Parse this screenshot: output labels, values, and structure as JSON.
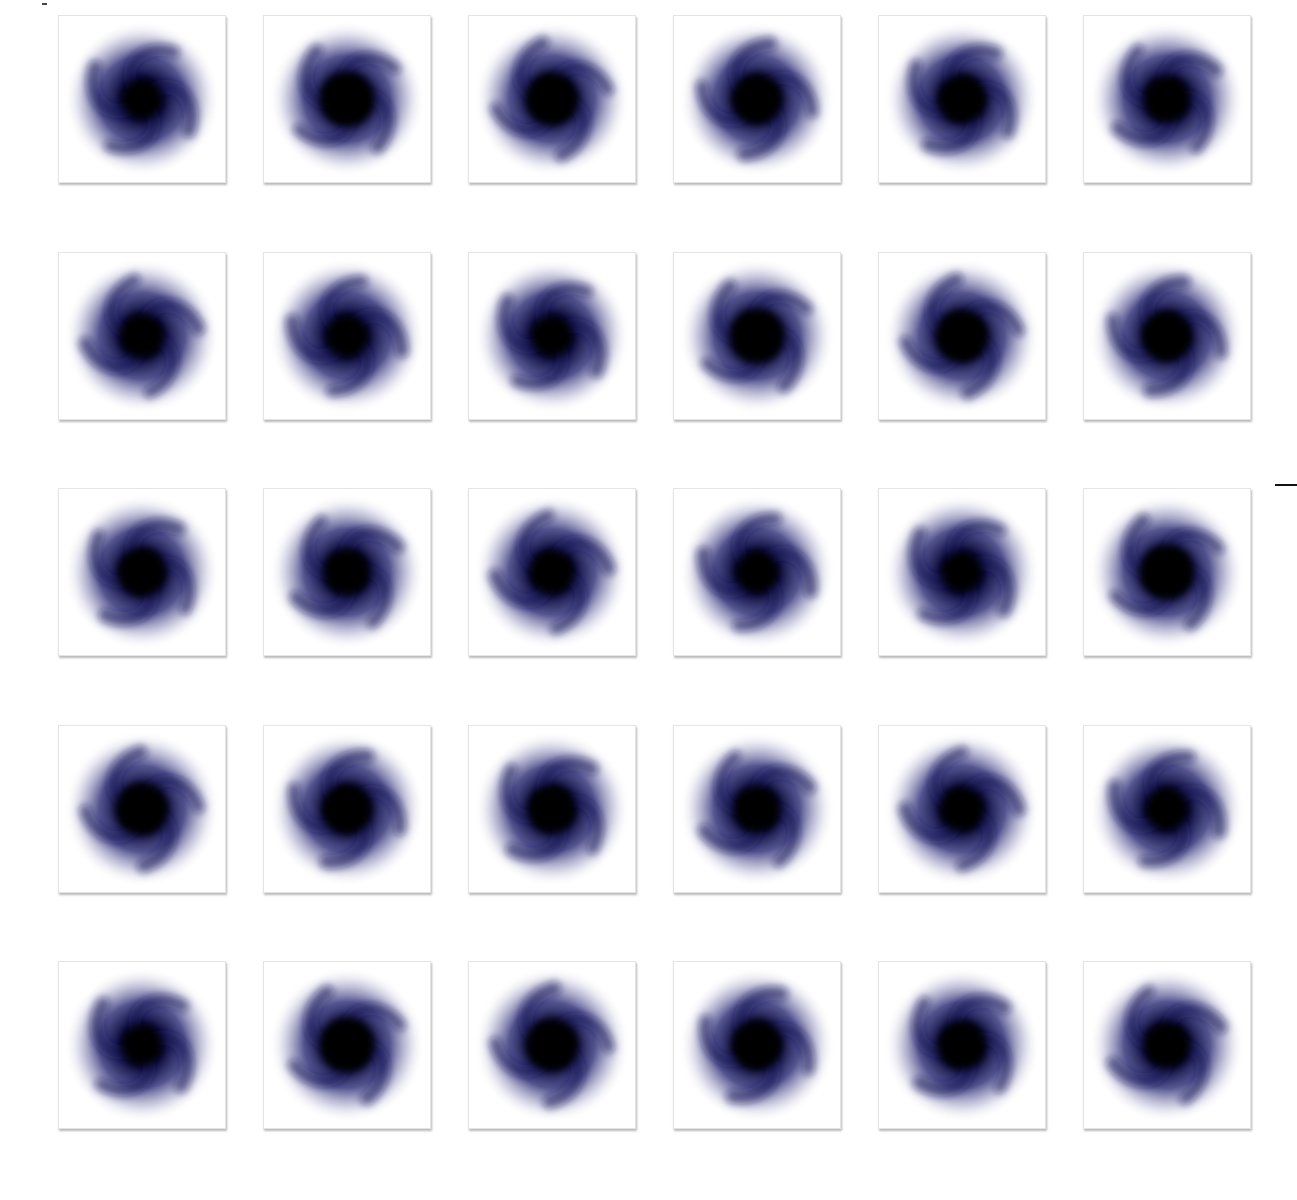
{
  "window": {
    "title": ""
  },
  "thumbnails": {
    "count": 30,
    "columns": 6,
    "accent_color": "#0b0b3a",
    "background_color": "#ffffff",
    "icon": "swirl-galaxy-thumbnail",
    "items": [
      {
        "caption": ""
      },
      {
        "caption": ""
      },
      {
        "caption": ""
      },
      {
        "caption": ""
      },
      {
        "caption": ""
      },
      {
        "caption": ""
      },
      {
        "caption": ""
      },
      {
        "caption": ""
      },
      {
        "caption": ""
      },
      {
        "caption": ""
      },
      {
        "caption": ""
      },
      {
        "caption": ""
      },
      {
        "caption": ""
      },
      {
        "caption": ""
      },
      {
        "caption": ""
      },
      {
        "caption": ""
      },
      {
        "caption": ""
      },
      {
        "caption": ""
      },
      {
        "caption": ""
      },
      {
        "caption": ""
      },
      {
        "caption": ""
      },
      {
        "caption": ""
      },
      {
        "caption": ""
      },
      {
        "caption": ""
      },
      {
        "caption": ""
      },
      {
        "caption": ""
      },
      {
        "caption": ""
      },
      {
        "caption": ""
      },
      {
        "caption": ""
      },
      {
        "caption": ""
      }
    ]
  }
}
